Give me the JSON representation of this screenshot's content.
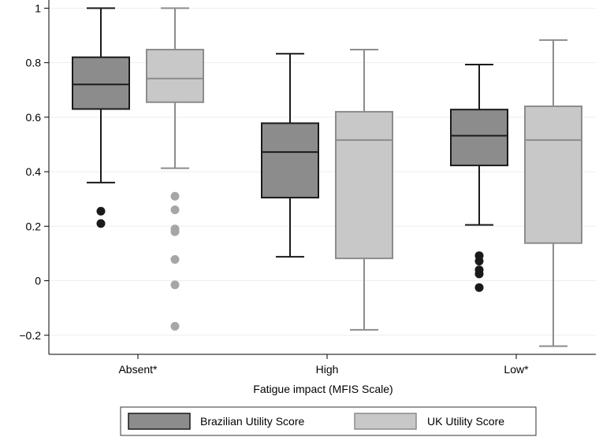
{
  "chart_data": {
    "type": "box",
    "title": "",
    "xlabel": "Fatigue impact (MFIS Scale)",
    "ylabel": "",
    "ylim": [
      -0.27,
      1.03
    ],
    "yticks": [
      1,
      0.8,
      0.6,
      0.4,
      0.2,
      0,
      -0.2
    ],
    "ytick_labels": [
      "1",
      "0.8",
      "0.6",
      "0.4",
      "0.2",
      "0",
      "−0.2"
    ],
    "grid": true,
    "legend_position": "bottom",
    "categories": [
      "Absent*",
      "High",
      "Low*"
    ],
    "series": [
      {
        "name": "Brazilian Utility Score",
        "fill": "#8c8c8c",
        "stroke": "#1a1a1a",
        "boxes": [
          {
            "whisker_low": 0.36,
            "q1": 0.63,
            "median": 0.72,
            "q3": 0.82,
            "whisker_high": 1.0,
            "outliers": [
              0.255,
              0.21
            ]
          },
          {
            "whisker_low": 0.088,
            "q1": 0.305,
            "median": 0.472,
            "q3": 0.578,
            "whisker_high": 0.833,
            "outliers": []
          },
          {
            "whisker_low": 0.205,
            "q1": 0.423,
            "median": 0.532,
            "q3": 0.628,
            "whisker_high": 0.793,
            "outliers": [
              0.092,
              0.072,
              0.04,
              0.025,
              -0.025
            ]
          }
        ]
      },
      {
        "name": "UK Utility Score",
        "fill": "#c8c8c8",
        "stroke": "#8c8c8c",
        "boxes": [
          {
            "whisker_low": 0.413,
            "q1": 0.655,
            "median": 0.742,
            "q3": 0.848,
            "whisker_high": 1.0,
            "outliers": [
              0.31,
              0.26,
              0.19,
              0.18,
              0.078,
              -0.015,
              -0.167
            ]
          },
          {
            "whisker_low": -0.18,
            "q1": 0.082,
            "median": 0.516,
            "q3": 0.62,
            "whisker_high": 0.848,
            "outliers": []
          },
          {
            "whisker_low": -0.24,
            "q1": 0.138,
            "median": 0.516,
            "q3": 0.64,
            "whisker_high": 0.883,
            "outliers": []
          }
        ]
      }
    ]
  }
}
